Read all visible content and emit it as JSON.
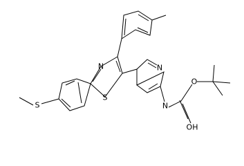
{
  "atoms": {
    "thiazole_n": "N",
    "thiazole_s": "S",
    "thioether_s": "S",
    "pyridine_n": "N",
    "amide_n": "N",
    "ester_o": "O",
    "hydroxyl": "OH"
  }
}
